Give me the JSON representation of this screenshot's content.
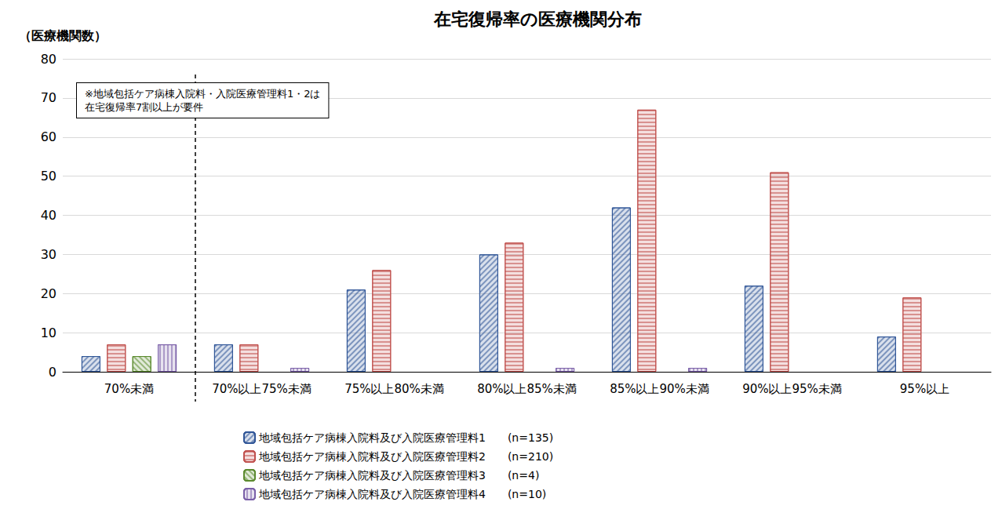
{
  "chart_data": {
    "type": "bar",
    "title": "在宅復帰率の医療機関分布",
    "y_label": "（医療機関数）",
    "annotation": "※地域包括ケア病棟入院料・入院医療管理料1・2は\n在宅復帰率7割以上が要件",
    "categories": [
      "70%未満",
      "70%以上75%未満",
      "75%以上80%未満",
      "80%以上85%未満",
      "85%以上90%未満",
      "90%以上95%未満",
      "95%以上"
    ],
    "series": [
      {
        "name": "地域包括ケア病棟入院料及び入院医療管理料1　　(n=135)",
        "color": "#2f5597",
        "values": [
          4,
          7,
          21,
          30,
          42,
          22,
          9
        ]
      },
      {
        "name": "地域包括ケア病棟入院料及び入院医療管理料2　　(n=210)",
        "color": "#c0504d",
        "values": [
          7,
          7,
          26,
          33,
          67,
          51,
          19
        ]
      },
      {
        "name": "地域包括ケア病棟入院料及び入院医療管理料3　　(n=4)",
        "color": "#5b8a2e",
        "values": [
          4,
          0,
          0,
          0,
          0,
          0,
          0
        ]
      },
      {
        "name": "地域包括ケア病棟入院料及び入院医療管理料4　　(n=10)",
        "color": "#7a5fa8",
        "values": [
          7,
          1,
          0,
          1,
          1,
          0,
          0
        ]
      }
    ],
    "ylim": [
      0,
      80
    ],
    "yticks": [
      0,
      10,
      20,
      30,
      40,
      50,
      60,
      70,
      80
    ],
    "grid": true,
    "legend": "bottom"
  }
}
